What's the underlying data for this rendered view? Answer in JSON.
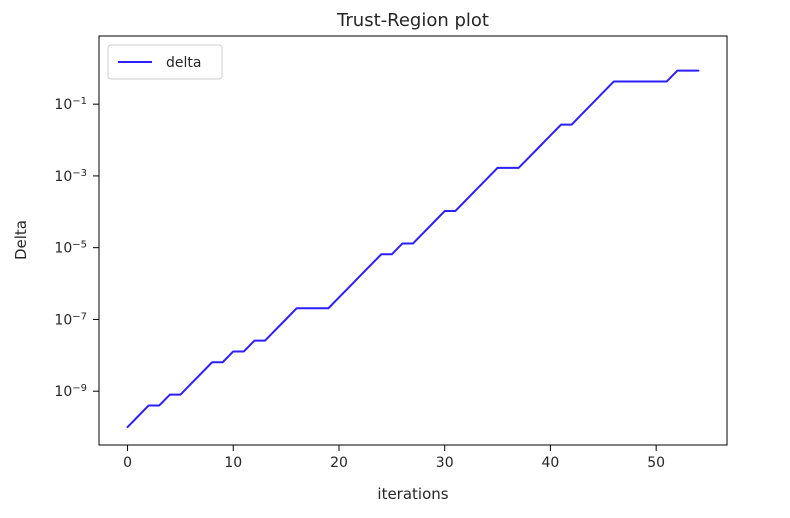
{
  "chart_data": {
    "type": "line",
    "title": "Trust-Region plot",
    "xlabel": "iterations",
    "ylabel": "Delta",
    "xlim": [
      -2.7,
      56.7
    ],
    "ylim_log10": [
      -10.5,
      0.9
    ],
    "yscale": "log",
    "grid": false,
    "legend_position": "top-left",
    "x_ticks": [
      0,
      10,
      20,
      30,
      40,
      50
    ],
    "x_tick_labels": [
      "0",
      "10",
      "20",
      "30",
      "40",
      "50"
    ],
    "y_ticks_log10": [
      -1,
      -3,
      -5,
      -7,
      -9
    ],
    "y_tick_labels": [
      {
        "base": "10",
        "exp": "−1"
      },
      {
        "base": "10",
        "exp": "−3"
      },
      {
        "base": "10",
        "exp": "−5"
      },
      {
        "base": "10",
        "exp": "−7"
      },
      {
        "base": "10",
        "exp": "−9"
      }
    ],
    "series": [
      {
        "name": "delta",
        "color": "#2b1fff",
        "x": [
          0,
          1,
          2,
          3,
          4,
          5,
          6,
          7,
          8,
          9,
          10,
          11,
          12,
          13,
          14,
          15,
          16,
          17,
          18,
          19,
          20,
          21,
          22,
          23,
          24,
          25,
          26,
          27,
          28,
          29,
          30,
          31,
          32,
          33,
          34,
          35,
          36,
          37,
          38,
          39,
          40,
          41,
          42,
          43,
          44,
          45,
          46,
          47,
          48,
          49,
          50,
          51,
          52,
          53,
          54
        ],
        "y": [
          1e-10,
          2e-10,
          4e-10,
          4e-10,
          8e-10,
          8e-10,
          1.6e-09,
          3.2e-09,
          6.4e-09,
          6.4e-09,
          1.28e-08,
          1.28e-08,
          2.56e-08,
          2.56e-08,
          5.12e-08,
          1.02e-07,
          2.05e-07,
          2.05e-07,
          2.05e-07,
          2.05e-07,
          4.1e-07,
          8.2e-07,
          1.64e-06,
          3.28e-06,
          6.55e-06,
          6.55e-06,
          1.31e-05,
          1.31e-05,
          2.62e-05,
          5.24e-05,
          0.000105,
          0.000105,
          0.00021,
          0.000419,
          0.000839,
          0.00168,
          0.00168,
          0.00168,
          0.00336,
          0.00671,
          0.0134,
          0.0268,
          0.0268,
          0.0537,
          0.107,
          0.215,
          0.429,
          0.429,
          0.429,
          0.429,
          0.429,
          0.429,
          0.859,
          0.859,
          0.859
        ]
      }
    ]
  }
}
